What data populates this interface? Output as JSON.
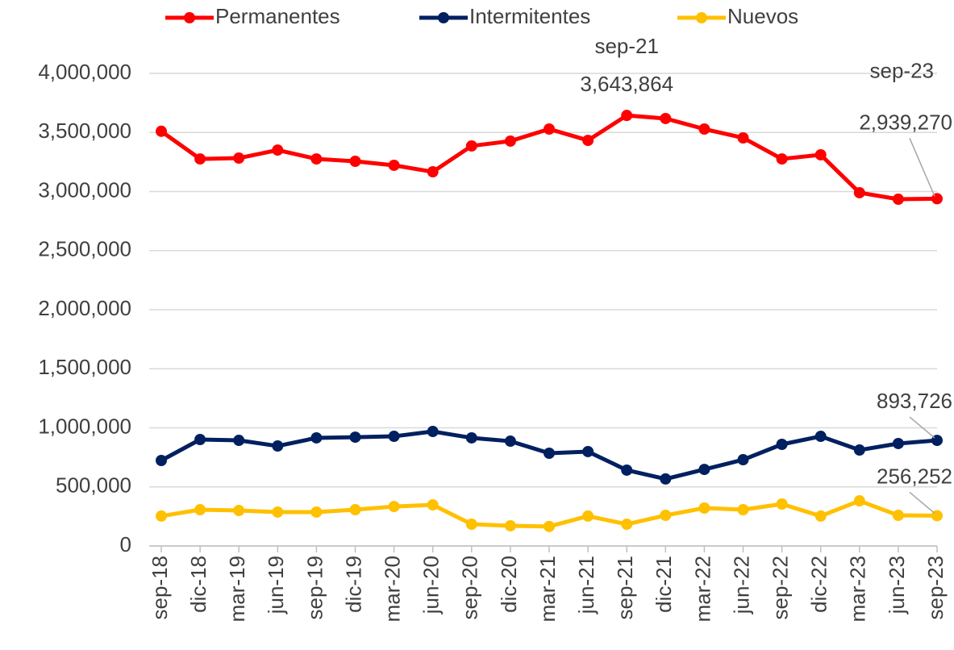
{
  "chart_data": {
    "type": "line",
    "categories": [
      "sep-18",
      "dic-18",
      "mar-19",
      "jun-19",
      "sep-19",
      "dic-19",
      "mar-20",
      "jun-20",
      "sep-20",
      "dic-20",
      "mar-21",
      "jun-21",
      "sep-21",
      "dic-21",
      "mar-22",
      "jun-22",
      "sep-22",
      "dic-22",
      "mar-23",
      "jun-23",
      "sep-23"
    ],
    "series": [
      {
        "name": "Permanentes",
        "color": "#ff0000",
        "values": [
          3510000,
          3276000,
          3283000,
          3351000,
          3276000,
          3256000,
          3222000,
          3167000,
          3386000,
          3427000,
          3529000,
          3433000,
          3643864,
          3618000,
          3529000,
          3454000,
          3276000,
          3311000,
          2990000,
          2935000,
          2939270
        ],
        "value_labels": [
          null,
          null,
          null,
          null,
          null,
          null,
          null,
          null,
          null,
          null,
          null,
          null,
          "3,643,864",
          null,
          null,
          null,
          null,
          null,
          null,
          null,
          "2,939,270"
        ]
      },
      {
        "name": "Intermitentes",
        "color": "#002060",
        "values": [
          723600,
          901000,
          894000,
          846000,
          915000,
          921000,
          928000,
          969000,
          915000,
          887000,
          785000,
          799000,
          642000,
          567000,
          648000,
          730000,
          860000,
          928000,
          812000,
          867000,
          893726
        ],
        "value_labels": [
          null,
          null,
          null,
          null,
          null,
          null,
          null,
          null,
          null,
          null,
          null,
          null,
          null,
          null,
          null,
          null,
          null,
          null,
          null,
          null,
          "893,726"
        ]
      },
      {
        "name": "Nuevos",
        "color": "#ffc000",
        "values": [
          253000,
          307000,
          300000,
          287000,
          287000,
          307000,
          334000,
          348000,
          184000,
          171000,
          165000,
          253000,
          184000,
          259000,
          321000,
          307000,
          355000,
          253000,
          382000,
          259000,
          256252
        ],
        "value_labels": [
          null,
          null,
          null,
          null,
          null,
          null,
          null,
          null,
          null,
          null,
          null,
          null,
          null,
          null,
          null,
          null,
          null,
          null,
          null,
          null,
          "256,252"
        ]
      }
    ],
    "ylim": [
      0,
      4000000
    ],
    "yticks": [
      0,
      {
        "value": 500000,
        "label": "500,000"
      },
      {
        "value": 1000000,
        "label": "1,000,000"
      },
      {
        "value": 1500000,
        "label": "1,500,000"
      },
      {
        "value": 2000000,
        "label": "2,000,000"
      },
      {
        "value": 2500000,
        "label": "2,500,000"
      },
      {
        "value": 3000000,
        "label": "3,000,000"
      },
      {
        "value": 3500000,
        "label": "3,500,000"
      },
      {
        "value": 4000000,
        "label": "4,000,000"
      }
    ],
    "grid": true,
    "legend": "top"
  }
}
